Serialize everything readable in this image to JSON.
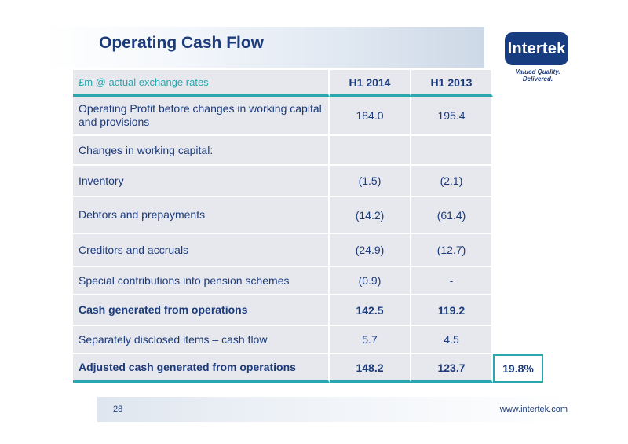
{
  "slide": {
    "title": "Operating Cash Flow",
    "page_number": "28",
    "website": "www.intertek.com"
  },
  "logo": {
    "name": "Intertek",
    "tagline": "Valued Quality. Delivered."
  },
  "table": {
    "header": {
      "label": "£m @ actual exchange rates",
      "col1": "H1 2014",
      "col2": "H1 2013"
    },
    "rows": [
      {
        "label": "Operating Profit before changes in working capital and provisions",
        "h1_2014": "184.0",
        "h1_2013": "195.4"
      },
      {
        "label": "Changes in working capital:",
        "h1_2014": "",
        "h1_2013": ""
      },
      {
        "label": "Inventory",
        "h1_2014": "(1.5)",
        "h1_2013": "(2.1)"
      },
      {
        "label": "Debtors and prepayments",
        "h1_2014": "(14.2)",
        "h1_2013": "(61.4)"
      },
      {
        "label": "Creditors and accruals",
        "h1_2014": "(24.9)",
        "h1_2013": "(12.7)"
      },
      {
        "label": "Special contributions into pension schemes",
        "h1_2014": "(0.9)",
        "h1_2013": "-"
      },
      {
        "label": "Cash generated from operations",
        "h1_2014": "142.5",
        "h1_2013": "119.2"
      },
      {
        "label": "Separately disclosed items – cash flow",
        "h1_2014": "5.7",
        "h1_2013": "4.5"
      },
      {
        "label": "Adjusted cash generated from operations",
        "h1_2014": "148.2",
        "h1_2013": "123.7",
        "change": "19.8%"
      }
    ]
  },
  "colors": {
    "navy": "#1c3b7a",
    "teal": "#2aa7ae",
    "cell_bg": "#e6e8ee",
    "logo_bg": "#173d80"
  }
}
